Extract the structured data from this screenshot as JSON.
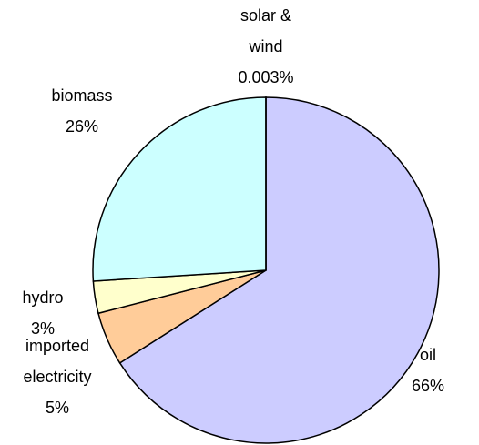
{
  "chart_data": {
    "type": "pie",
    "categories": [
      "oil",
      "imported electricity",
      "hydro",
      "biomass",
      "solar & wind"
    ],
    "values": [
      66,
      5,
      3,
      26,
      0.003
    ],
    "value_labels": [
      "66%",
      "5%",
      "3%",
      "26%",
      "0.003%"
    ],
    "colors": [
      "#ccccff",
      "#ffcc99",
      "#ffffcc",
      "#ccffff",
      "#993366"
    ]
  }
}
